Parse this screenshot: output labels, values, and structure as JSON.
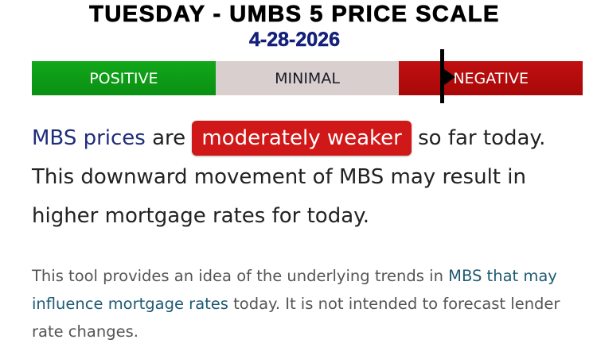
{
  "header": {
    "title": "TUESDAY - UMBS 5 PRICE SCALE",
    "date": "4-28-2026"
  },
  "scale": {
    "segments": [
      {
        "label": "POSITIVE",
        "color": "#0a9a12"
      },
      {
        "label": "MINIMAL",
        "color": "#d9cfcf"
      },
      {
        "label": "NEGATIVE",
        "color": "#b30c0c"
      }
    ],
    "current": "NEGATIVE"
  },
  "summary": {
    "link": "MBS prices",
    "pre": " are ",
    "badge": "moderately weaker",
    "post": " so far today. This downward movement of MBS may result in higher mortgage rates for today."
  },
  "footer": {
    "pre": "This tool provides an idea of the underlying trends in ",
    "link": "MBS that may influence mortgage rates",
    "post": " today. It is not intended to forecast lender rate changes."
  }
}
